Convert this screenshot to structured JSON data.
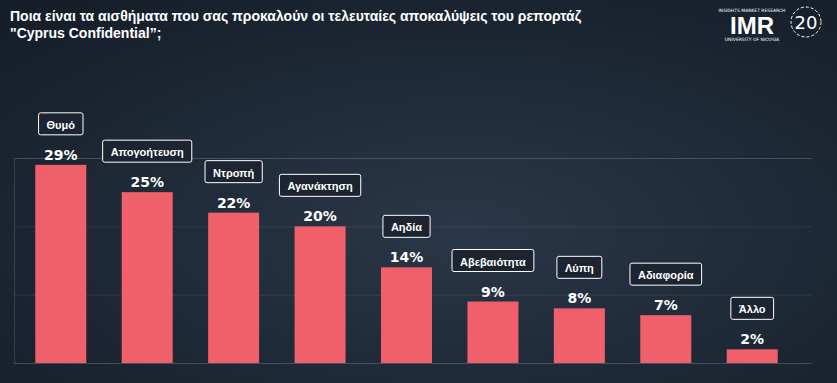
{
  "chart_data": {
    "type": "bar",
    "title": "Ποια είναι τα αισθήματα που σας προκαλούν οι τελευταίες αποκαλύψεις του ρεπορτάζ\n\"Cyprus Confidential”;",
    "annotations": [
      "IMR",
      "INSIGHTS MARKET RESEARCH",
      "UNIVERSITY OF NICOSIA",
      "20"
    ],
    "categories": [
      "Θυμό",
      "Απογοήτευση",
      "Ντροπή",
      "Αγανάκτηση",
      "Αηδία",
      "Αβεβαιότητα",
      "Λύπη",
      "Αδιαφορία",
      "Άλλο"
    ],
    "values": [
      29,
      25,
      22,
      20,
      14,
      9,
      8,
      7,
      2
    ],
    "value_labels": [
      "29%",
      "25%",
      "22%",
      "20%",
      "14%",
      "9%",
      "8%",
      "7%",
      "2%"
    ],
    "color": "#f0606a",
    "ylim": [
      0,
      30
    ],
    "yticks": [
      0,
      10,
      20,
      30
    ],
    "grid": true,
    "data_labels": true,
    "tick_labels": false
  }
}
